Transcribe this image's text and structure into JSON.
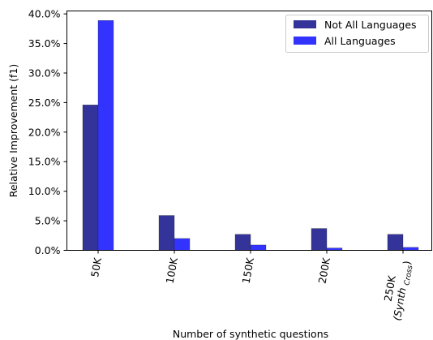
{
  "chart_data": {
    "type": "bar",
    "categories": [
      "50K",
      "100K",
      "150K",
      "200K",
      "250K\n(Synth Cross)"
    ],
    "category_labels": [
      {
        "main": "50K"
      },
      {
        "main": "100K"
      },
      {
        "main": "150K"
      },
      {
        "main": "200K"
      },
      {
        "main": "250K",
        "sub_prefix": "(Synth",
        "sub_subscript": "Cross",
        "sub_suffix": ")"
      }
    ],
    "series": [
      {
        "name": "Not All Languages",
        "color": "#333399",
        "values": [
          24.6,
          5.9,
          2.7,
          3.7,
          2.7
        ]
      },
      {
        "name": "All Languages",
        "color": "#3333ff",
        "values": [
          38.9,
          2.0,
          0.9,
          0.4,
          0.5
        ]
      }
    ],
    "xlabel": "Number of synthetic questions",
    "ylabel": "Relative Improvement (f1)",
    "ylim": [
      0,
      40.5
    ],
    "yticks": [
      0,
      5,
      10,
      15,
      20,
      25,
      30,
      35,
      40
    ],
    "ytick_labels": [
      "0.0%",
      "5.0%",
      "10.0%",
      "15.0%",
      "20.0%",
      "25.0%",
      "30.0%",
      "35.0%",
      "40.0%"
    ],
    "legend": "top-right",
    "grid": false
  }
}
